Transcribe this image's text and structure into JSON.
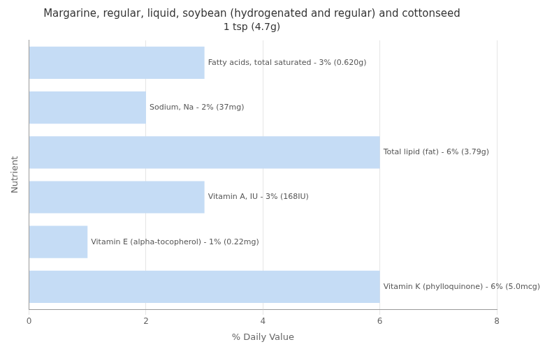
{
  "chart_data": {
    "type": "bar",
    "orientation": "horizontal",
    "title": "Margarine, regular, liquid, soybean (hydrogenated and regular) and cottonseed",
    "subtitle": "1 tsp (4.7g)",
    "x_label": "% Daily Value",
    "y_label": "Nutrient",
    "categories": [
      "Fatty acids, total saturated - 3% (0.620g)",
      "Sodium, Na - 2% (37mg)",
      "Total lipid (fat) - 6% (3.79g)",
      "Vitamin A, IU - 3% (168IU)",
      "Vitamin E (alpha-tocopherol) - 1% (0.22mg)",
      "Vitamin K (phylloquinone) - 6% (5.0mcg)"
    ],
    "values": [
      3,
      2,
      6,
      3,
      1,
      6
    ],
    "color": "#c5dcf5",
    "xlim": [
      0,
      8
    ],
    "xticks": [
      0,
      2,
      4,
      6,
      8
    ],
    "grid": true,
    "tick_labels": "x"
  }
}
